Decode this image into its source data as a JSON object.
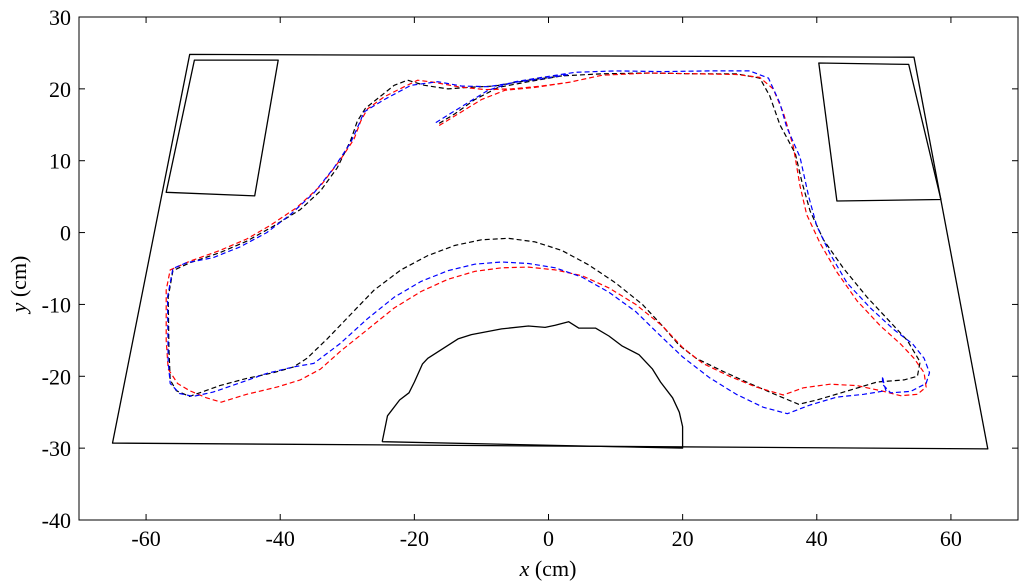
{
  "chart_data": {
    "type": "line",
    "title": "",
    "xlabel_var": "x",
    "xlabel_unit": " (cm)",
    "ylabel_var": "y",
    "ylabel_unit": " (cm)",
    "xlim": [
      -70,
      70
    ],
    "ylim": [
      -40,
      30
    ],
    "xticks": [
      -60,
      -40,
      -20,
      0,
      20,
      40,
      60
    ],
    "yticks": [
      -40,
      -30,
      -20,
      -10,
      0,
      10,
      20,
      30
    ],
    "grid": false,
    "solid_color": "#000000",
    "solid_shapes": [
      {
        "name": "outer-boundary",
        "closed": true,
        "points": [
          [
            -53.5,
            24.8
          ],
          [
            54.5,
            24.4
          ],
          [
            65.5,
            -30.1
          ],
          [
            -65,
            -29.3
          ]
        ]
      },
      {
        "name": "left-obstacle",
        "closed": true,
        "points": [
          [
            -52.8,
            24
          ],
          [
            -40.3,
            24
          ],
          [
            -43.8,
            5.1
          ],
          [
            -57,
            5.6
          ]
        ]
      },
      {
        "name": "right-obstacle",
        "closed": true,
        "points": [
          [
            40.3,
            23.6
          ],
          [
            53.7,
            23.4
          ],
          [
            58.5,
            4.6
          ],
          [
            43,
            4.4
          ]
        ]
      },
      {
        "name": "bottom-obstacle",
        "closed": false,
        "points": [
          [
            -24.8,
            -29.1
          ],
          [
            -24,
            -25.5
          ],
          [
            -22.2,
            -23.3
          ],
          [
            -20.8,
            -22.3
          ],
          [
            -20,
            -20.8
          ],
          [
            -18.8,
            -18.3
          ],
          [
            -18,
            -17.5
          ],
          [
            -13.5,
            -14.8
          ],
          [
            -11.5,
            -14.2
          ],
          [
            -7,
            -13.4
          ],
          [
            -3,
            -13
          ],
          [
            -0.5,
            -13.2
          ],
          [
            1,
            -12.9
          ],
          [
            3,
            -12.4
          ],
          [
            4.5,
            -13.3
          ],
          [
            7,
            -13.3
          ],
          [
            9,
            -14.4
          ],
          [
            11,
            -15.8
          ],
          [
            13.5,
            -17
          ],
          [
            15.5,
            -19
          ],
          [
            16.7,
            -20.8
          ],
          [
            18.5,
            -23
          ],
          [
            19.5,
            -25
          ],
          [
            20,
            -27
          ],
          [
            20,
            -30
          ],
          [
            -24.8,
            -29.1
          ]
        ]
      }
    ],
    "series": [
      {
        "name": "black",
        "color": "#000000",
        "points": [
          [
            -16.3,
            15.2
          ],
          [
            -14,
            16.5
          ],
          [
            -11,
            18.5
          ],
          [
            -7.5,
            20.2
          ],
          [
            -3,
            21
          ],
          [
            2,
            21.8
          ],
          [
            8,
            22.1
          ],
          [
            15,
            22.2
          ],
          [
            22,
            22.1
          ],
          [
            28,
            22.1
          ],
          [
            31.5,
            21.5
          ],
          [
            33,
            19
          ],
          [
            34.5,
            15
          ],
          [
            36.8,
            11
          ],
          [
            37.8,
            7
          ],
          [
            39,
            3
          ],
          [
            41,
            -1
          ],
          [
            44,
            -5
          ],
          [
            47.5,
            -9
          ],
          [
            51,
            -12.5
          ],
          [
            53.5,
            -15
          ],
          [
            55.4,
            -18
          ],
          [
            55,
            -20
          ],
          [
            53,
            -20.5
          ],
          [
            49,
            -20.8
          ],
          [
            44,
            -22.2
          ],
          [
            40,
            -23.3
          ],
          [
            37.3,
            -23.9
          ],
          [
            34,
            -22.6
          ],
          [
            30,
            -21
          ],
          [
            26,
            -19.3
          ],
          [
            22,
            -17.5
          ],
          [
            19.5,
            -15.7
          ],
          [
            17,
            -13
          ],
          [
            14,
            -10
          ],
          [
            10,
            -7
          ],
          [
            6,
            -4.5
          ],
          [
            2,
            -2.5
          ],
          [
            -2,
            -1.3
          ],
          [
            -6,
            -0.8
          ],
          [
            -10,
            -1
          ],
          [
            -14,
            -1.8
          ],
          [
            -18,
            -3.2
          ],
          [
            -22,
            -5.2
          ],
          [
            -26,
            -8
          ],
          [
            -29.5,
            -11.4
          ],
          [
            -33,
            -14.8
          ],
          [
            -36,
            -17.5
          ],
          [
            -38,
            -18.7
          ],
          [
            -41,
            -19.5
          ],
          [
            -45,
            -20.3
          ],
          [
            -49,
            -21.3
          ],
          [
            -53.5,
            -22.8
          ],
          [
            -55.5,
            -22
          ],
          [
            -56.4,
            -20.5
          ],
          [
            -56.6,
            -16
          ],
          [
            -56.7,
            -9
          ],
          [
            -56,
            -5.3
          ],
          [
            -53.5,
            -4.2
          ],
          [
            -49,
            -2.8
          ],
          [
            -45,
            -1.2
          ],
          [
            -41,
            0.9
          ],
          [
            -37,
            3.2
          ],
          [
            -34,
            5.8
          ],
          [
            -31.5,
            9
          ],
          [
            -29.5,
            12.8
          ],
          [
            -28.5,
            15.5
          ],
          [
            -27.3,
            17.3
          ],
          [
            -25,
            19
          ],
          [
            -23,
            20.5
          ],
          [
            -21,
            21.2
          ],
          [
            -18.5,
            20.5
          ],
          [
            -15,
            20
          ],
          [
            -12,
            20.2
          ],
          [
            -8,
            20.4
          ],
          [
            -3,
            21.2
          ],
          [
            2,
            21.8
          ]
        ]
      },
      {
        "name": "red",
        "color": "#ff0000",
        "points": [
          [
            -16.3,
            14.9
          ],
          [
            -13.5,
            16.5
          ],
          [
            -10,
            18.5
          ],
          [
            -6.5,
            19.8
          ],
          [
            -2,
            20.2
          ],
          [
            3,
            20.9
          ],
          [
            8,
            21.9
          ],
          [
            15,
            22.2
          ],
          [
            22,
            22.1
          ],
          [
            28,
            22
          ],
          [
            31.5,
            21.6
          ],
          [
            33.5,
            20
          ],
          [
            35,
            16.7
          ],
          [
            36.5,
            12
          ],
          [
            37.5,
            6.5
          ],
          [
            38.5,
            2.5
          ],
          [
            40.5,
            -1.5
          ],
          [
            43,
            -5.5
          ],
          [
            46,
            -9.5
          ],
          [
            49.5,
            -13
          ],
          [
            52.5,
            -15.5
          ],
          [
            54.5,
            -17.5
          ],
          [
            56,
            -19.5
          ],
          [
            56.3,
            -21.5
          ],
          [
            55,
            -22.5
          ],
          [
            52.5,
            -22.7
          ],
          [
            50,
            -22.1
          ],
          [
            46,
            -21.3
          ],
          [
            42,
            -21.1
          ],
          [
            38,
            -21.6
          ],
          [
            35,
            -22.6
          ],
          [
            31,
            -21.5
          ],
          [
            27,
            -20
          ],
          [
            23,
            -18.2
          ],
          [
            20,
            -16
          ],
          [
            17,
            -13
          ],
          [
            13,
            -10
          ],
          [
            9,
            -7.7
          ],
          [
            5,
            -6
          ],
          [
            1,
            -5.2
          ],
          [
            -3,
            -4.8
          ],
          [
            -7,
            -4.9
          ],
          [
            -11,
            -5.4
          ],
          [
            -15,
            -6.5
          ],
          [
            -19,
            -8.2
          ],
          [
            -23,
            -10.5
          ],
          [
            -27,
            -13.5
          ],
          [
            -31,
            -16.5
          ],
          [
            -34,
            -19
          ],
          [
            -37,
            -20.5
          ],
          [
            -40.5,
            -21.5
          ],
          [
            -45,
            -22.5
          ],
          [
            -48.8,
            -23.6
          ],
          [
            -51,
            -23
          ],
          [
            -53.5,
            -22
          ],
          [
            -55.3,
            -21
          ],
          [
            -56.7,
            -19
          ],
          [
            -57,
            -15
          ],
          [
            -57,
            -8
          ],
          [
            -56.4,
            -5.2
          ],
          [
            -53.5,
            -4
          ],
          [
            -49,
            -2.5
          ],
          [
            -45,
            -0.9
          ],
          [
            -41.5,
            1
          ],
          [
            -37.5,
            3.5
          ],
          [
            -34,
            6.5
          ],
          [
            -31,
            10.2
          ],
          [
            -29,
            13
          ],
          [
            -28,
            15.5
          ],
          [
            -27,
            17.2
          ],
          [
            -24.5,
            18.9
          ],
          [
            -21.5,
            20.3
          ],
          [
            -19.5,
            21.2
          ],
          [
            -17,
            20.9
          ],
          [
            -13.5,
            20.3
          ],
          [
            -9.5,
            19.9
          ],
          [
            -5.5,
            20
          ],
          [
            -1,
            20.4
          ],
          [
            3,
            20.9
          ]
        ]
      },
      {
        "name": "blue",
        "color": "#0000ff",
        "points": [
          [
            -16.8,
            15.3
          ],
          [
            -13,
            17.5
          ],
          [
            -9,
            19.8
          ],
          [
            -5,
            21
          ],
          [
            -1,
            21.6
          ],
          [
            4,
            22.3
          ],
          [
            10,
            22.5
          ],
          [
            17,
            22.4
          ],
          [
            24,
            22.5
          ],
          [
            30,
            22.5
          ],
          [
            32.8,
            21.5
          ],
          [
            34.5,
            18
          ],
          [
            35.5,
            14.7
          ],
          [
            37.5,
            10.5
          ],
          [
            38.8,
            5
          ],
          [
            40,
            0.9
          ],
          [
            42,
            -3
          ],
          [
            44.5,
            -7
          ],
          [
            48,
            -10.5
          ],
          [
            51.5,
            -13.5
          ],
          [
            54.3,
            -15.5
          ],
          [
            56,
            -17.5
          ],
          [
            56.8,
            -19.5
          ],
          [
            56.3,
            -21
          ],
          [
            54,
            -22.1
          ],
          [
            51,
            -22.3
          ],
          [
            49.8,
            -21.1
          ],
          [
            49.8,
            -20
          ],
          [
            50,
            -21
          ],
          [
            50.3,
            -22
          ],
          [
            47,
            -22.5
          ],
          [
            43,
            -22.9
          ],
          [
            39,
            -24
          ],
          [
            35.6,
            -25.2
          ],
          [
            32,
            -24.3
          ],
          [
            28,
            -22.5
          ],
          [
            24,
            -20.2
          ],
          [
            20,
            -17.3
          ],
          [
            16.5,
            -14.2
          ],
          [
            13,
            -11
          ],
          [
            9,
            -8.3
          ],
          [
            5,
            -6.2
          ],
          [
            1,
            -4.9
          ],
          [
            -3,
            -4.3
          ],
          [
            -7,
            -4.1
          ],
          [
            -11,
            -4.4
          ],
          [
            -15,
            -5.3
          ],
          [
            -19,
            -6.8
          ],
          [
            -23,
            -9
          ],
          [
            -27,
            -12
          ],
          [
            -31,
            -15.4
          ],
          [
            -35,
            -18.2
          ],
          [
            -38,
            -18.7
          ],
          [
            -42,
            -19.6
          ],
          [
            -46,
            -20.9
          ],
          [
            -50,
            -22.2
          ],
          [
            -53,
            -22.8
          ],
          [
            -55,
            -22.4
          ],
          [
            -56.4,
            -21
          ],
          [
            -56.7,
            -18
          ],
          [
            -56.8,
            -9
          ],
          [
            -56,
            -5
          ],
          [
            -54,
            -4.2
          ],
          [
            -50,
            -3.5
          ],
          [
            -46,
            -2
          ],
          [
            -42,
            0
          ],
          [
            -38.5,
            2.5
          ],
          [
            -35,
            5.5
          ],
          [
            -32,
            9
          ],
          [
            -29.5,
            12.5
          ],
          [
            -28.3,
            15
          ],
          [
            -27.5,
            16.8
          ],
          [
            -24.5,
            18.5
          ],
          [
            -20.5,
            20.5
          ],
          [
            -16.5,
            21
          ],
          [
            -13,
            20.4
          ],
          [
            -9,
            20.3
          ],
          [
            -5,
            20.9
          ],
          [
            -1,
            21.4
          ],
          [
            3,
            22
          ]
        ]
      }
    ]
  }
}
